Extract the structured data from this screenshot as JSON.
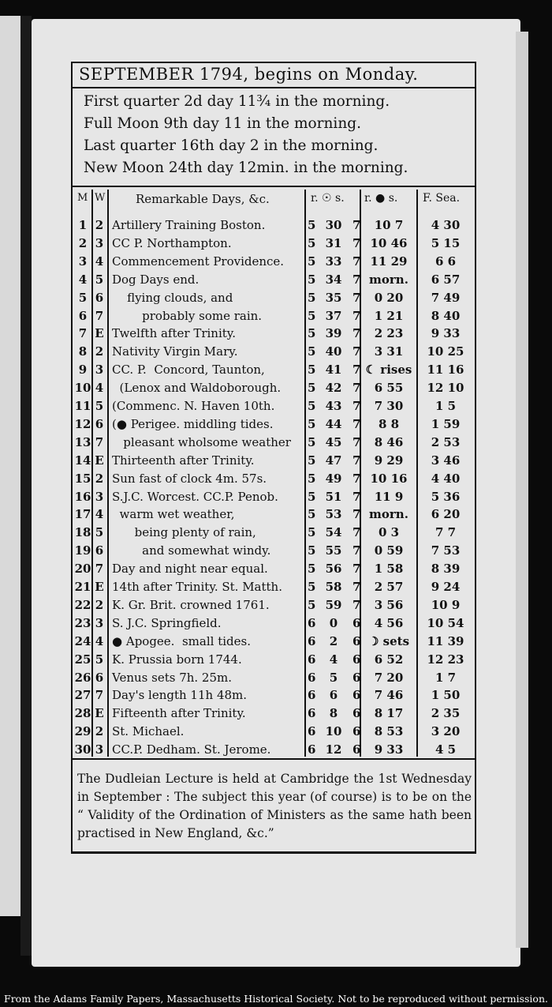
{
  "header": {
    "title": "SEPTEMBER 1794, begins on Monday."
  },
  "phases": [
    "First quarter 2d day 11¾ in the morning.",
    "Full Moon 9th day 11 in the morning.",
    "Last quarter 16th day 2 in the morning.",
    "New Moon 24th day 12min. in the morning."
  ],
  "columns": {
    "m": "M",
    "w": "W",
    "remarkable": "Remarkable Days, &c.",
    "sun": "r. ☉ s.",
    "moon": "r. ● s.",
    "sea": "F. Sea."
  },
  "rows": [
    {
      "m": "1",
      "w": "2",
      "r": "Artillery Training Boston.",
      "sr": "5",
      "sm": "30",
      "ss": "7",
      "mn": "10  7",
      "se": "4 30"
    },
    {
      "m": "2",
      "w": "3",
      "r": "CC P. Northampton.",
      "sr": "5",
      "sm": "31",
      "ss": "7",
      "mn": "10 46",
      "se": "5 15"
    },
    {
      "m": "3",
      "w": "4",
      "r": "Commencement Providence.",
      "sr": "5",
      "sm": "33",
      "ss": "7",
      "mn": "11 29",
      "se": "6  6"
    },
    {
      "m": "4",
      "w": "5",
      "r": "Dog Days end.",
      "sr": "5",
      "sm": "34",
      "ss": "7",
      "mn": "morn.",
      "se": "6 57"
    },
    {
      "m": "5",
      "w": "6",
      "r": "    flying clouds, and",
      "sr": "5",
      "sm": "35",
      "ss": "7",
      "mn": "0 20",
      "se": "7 49"
    },
    {
      "m": "6",
      "w": "7",
      "r": "        probably some rain.",
      "sr": "5",
      "sm": "37",
      "ss": "7",
      "mn": "1 21",
      "se": "8 40"
    },
    {
      "m": "7",
      "w": "E",
      "r": "Twelfth after Trinity.",
      "sr": "5",
      "sm": "39",
      "ss": "7",
      "mn": "2 23",
      "se": "9 33"
    },
    {
      "m": "8",
      "w": "2",
      "r": "Nativity Virgin Mary.",
      "sr": "5",
      "sm": "40",
      "ss": "7",
      "mn": "3 31",
      "se": "10 25"
    },
    {
      "m": "9",
      "w": "3",
      "r": "CC. P.  Concord, Taunton,",
      "sr": "5",
      "sm": "41",
      "ss": "7",
      "mn": "☾ rises",
      "se": "11 16"
    },
    {
      "m": "10",
      "w": "4",
      "r": "  (Lenox and Waldoborough.",
      "sr": "5",
      "sm": "42",
      "ss": "7",
      "mn": "6 55",
      "se": "12 10"
    },
    {
      "m": "11",
      "w": "5",
      "r": "(Commenc. N. Haven 10th.",
      "sr": "5",
      "sm": "43",
      "ss": "7",
      "mn": "7 30",
      "se": "1  5"
    },
    {
      "m": "12",
      "w": "6",
      "r": "(● Perigee. middling tides.",
      "sr": "5",
      "sm": "44",
      "ss": "7",
      "mn": "8  8",
      "se": "1 59"
    },
    {
      "m": "13",
      "w": "7",
      "r": "   pleasant wholsome weather",
      "sr": "5",
      "sm": "45",
      "ss": "7",
      "mn": "8 46",
      "se": "2 53"
    },
    {
      "m": "14",
      "w": "E",
      "r": "Thirteenth after Trinity.",
      "sr": "5",
      "sm": "47",
      "ss": "7",
      "mn": "9 29",
      "se": "3 46"
    },
    {
      "m": "15",
      "w": "2",
      "r": "Sun fast of clock 4m. 57s.",
      "sr": "5",
      "sm": "49",
      "ss": "7",
      "mn": "10 16",
      "se": "4 40"
    },
    {
      "m": "16",
      "w": "3",
      "r": "S.J.C. Worcest. CC.P. Penob.",
      "sr": "5",
      "sm": "51",
      "ss": "7",
      "mn": "11  9",
      "se": "5 36"
    },
    {
      "m": "17",
      "w": "4",
      "r": "  warm wet weather,",
      "sr": "5",
      "sm": "53",
      "ss": "7",
      "mn": "morn.",
      "se": "6 20"
    },
    {
      "m": "18",
      "w": "5",
      "r": "      being plenty of rain,",
      "sr": "5",
      "sm": "54",
      "ss": "7",
      "mn": "0  3",
      "se": "7  7"
    },
    {
      "m": "19",
      "w": "6",
      "r": "        and somewhat windy.",
      "sr": "5",
      "sm": "55",
      "ss": "7",
      "mn": "0 59",
      "se": "7 53"
    },
    {
      "m": "20",
      "w": "7",
      "r": "Day and night near equal.",
      "sr": "5",
      "sm": "56",
      "ss": "7",
      "mn": "1 58",
      "se": "8 39"
    },
    {
      "m": "21",
      "w": "E",
      "r": "14th after Trinity. St. Matth.",
      "sr": "5",
      "sm": "58",
      "ss": "7",
      "mn": "2 57",
      "se": "9 24"
    },
    {
      "m": "22",
      "w": "2",
      "r": "K. Gr. Brit. crowned 1761.",
      "sr": "5",
      "sm": "59",
      "ss": "7",
      "mn": "3 56",
      "se": "10  9"
    },
    {
      "m": "23",
      "w": "3",
      "r": "S. J.C. Springfield.",
      "sr": "6",
      "sm": "0",
      "ss": "6",
      "mn": "4 56",
      "se": "10 54"
    },
    {
      "m": "24",
      "w": "4",
      "r": "● Apogee.  small tides.",
      "sr": "6",
      "sm": "2",
      "ss": "6",
      "mn": "☽ sets",
      "se": "11 39"
    },
    {
      "m": "25",
      "w": "5",
      "r": "K. Prussia born 1744.",
      "sr": "6",
      "sm": "4",
      "ss": "6",
      "mn": "6 52",
      "se": "12 23"
    },
    {
      "m": "26",
      "w": "6",
      "r": "Venus sets 7h. 25m.",
      "sr": "6",
      "sm": "5",
      "ss": "6",
      "mn": "7 20",
      "se": "1  7"
    },
    {
      "m": "27",
      "w": "7",
      "r": "Day's length 11h 48m.",
      "sr": "6",
      "sm": "6",
      "ss": "6",
      "mn": "7 46",
      "se": "1 50"
    },
    {
      "m": "28",
      "w": "E",
      "r": "Fifteenth after Trinity.",
      "sr": "6",
      "sm": "8",
      "ss": "6",
      "mn": "8 17",
      "se": "2 35"
    },
    {
      "m": "29",
      "w": "2",
      "r": "St. Michael.",
      "sr": "6",
      "sm": "10",
      "ss": "6",
      "mn": "8 53",
      "se": "3 20"
    },
    {
      "m": "30",
      "w": "3",
      "r": "CC.P. Dedham. St. Jerome.",
      "sr": "6",
      "sm": "12",
      "ss": "6",
      "mn": "9 33",
      "se": "4  5"
    }
  ],
  "note": "The Dudleian Lecture is held at Cambridge the 1st Wednesday in September : The subject this year (of course) is to be on the “ Validity of the Ordination of Ministers as the same hath been practised in New England, &c.”",
  "caption": "From the Adams Family Papers, Massachusetts Historical Society. Not to be reproduced without permission."
}
